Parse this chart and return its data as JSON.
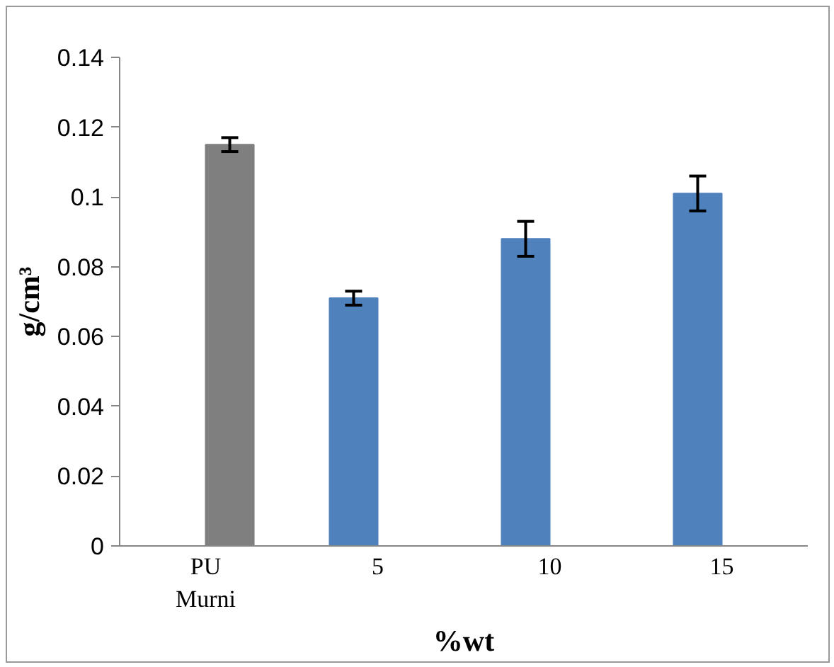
{
  "chart_data": {
    "type": "bar",
    "xlabel": "%wt",
    "ylabel": "g/cm³",
    "categories": [
      "PU\nMurni",
      "5",
      "10",
      "15"
    ],
    "series": [
      {
        "color": "#4f81bd",
        "values": [
          null,
          0.071,
          0.088,
          0.101
        ],
        "errors": [
          null,
          0.002,
          0.005,
          0.005
        ]
      },
      {
        "color": "#7f7f7f",
        "values": [
          0.115,
          null,
          null,
          null
        ],
        "errors": [
          0.002,
          null,
          null,
          null
        ]
      }
    ],
    "ylim": [
      0,
      0.14
    ],
    "yticks": [
      0,
      0.02,
      0.04,
      0.06,
      0.08,
      0.1,
      0.12,
      0.14
    ],
    "grid": false
  }
}
